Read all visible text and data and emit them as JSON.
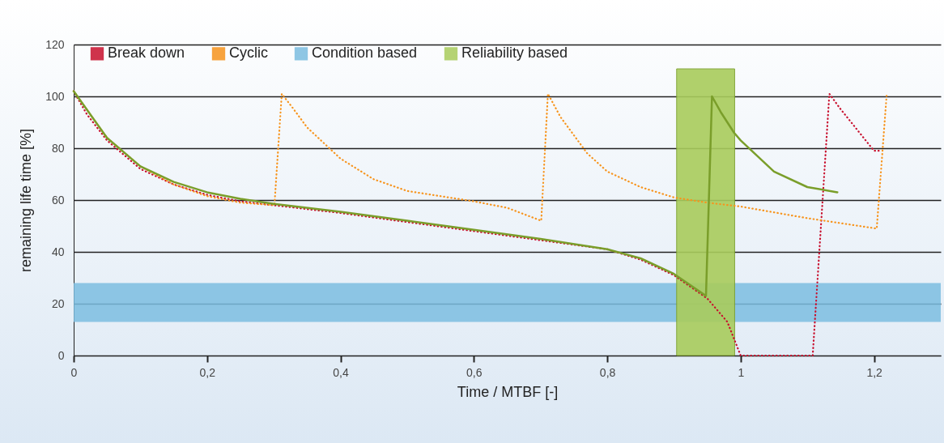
{
  "chart_data": {
    "type": "line",
    "xlabel": "Time / MTBF [-]",
    "ylabel": "remaining life time [%]",
    "xlim": [
      0,
      1.3
    ],
    "ylim": [
      0,
      120
    ],
    "xticks": [
      0,
      {
        "value": 0.2,
        "label": "0,2"
      },
      {
        "value": 0.4,
        "label": "0,4"
      },
      {
        "value": 0.6,
        "label": "0,6"
      },
      {
        "value": 0.8,
        "label": "0,8"
      },
      1,
      {
        "value": 1.2,
        "label": "1,2"
      }
    ],
    "yticks": [
      0,
      20,
      40,
      60,
      80,
      100,
      120
    ],
    "grid": "y",
    "legend": "top",
    "series": [
      {
        "name": "Break down",
        "color": "#c8102e",
        "line_style": "dotted",
        "x": [
          0,
          0.02,
          0.05,
          0.1,
          0.15,
          0.2,
          0.25,
          0.3,
          0.4,
          0.5,
          0.6,
          0.7,
          0.8,
          0.85,
          0.9,
          0.95,
          0.98,
          1.0,
          1.108,
          1.133,
          1.15,
          1.2,
          1.21
        ],
        "values": [
          102,
          93,
          83,
          72,
          66,
          62,
          59.5,
          58,
          55,
          51.5,
          48,
          44.5,
          41,
          37,
          31,
          22,
          13,
          0,
          0,
          101,
          95,
          79,
          79
        ]
      },
      {
        "name": "Cyclic",
        "color": "#f7941d",
        "line_style": "dotted",
        "x": [
          0,
          0.05,
          0.1,
          0.15,
          0.2,
          0.25,
          0.301,
          0.312,
          0.33,
          0.35,
          0.4,
          0.45,
          0.5,
          0.55,
          0.6,
          0.65,
          0.701,
          0.711,
          0.73,
          0.77,
          0.8,
          0.85,
          0.9,
          0.95,
          1.0,
          1.1,
          1.204,
          1.219
        ],
        "values": [
          102,
          84,
          73,
          66,
          61.5,
          59,
          58,
          101,
          95,
          88,
          76,
          68,
          63.5,
          61.5,
          59.5,
          57,
          52,
          101,
          92,
          78,
          71,
          65,
          61,
          59,
          57.5,
          53,
          49,
          101
        ]
      },
      {
        "color": "#7a9e2a",
        "line_style": "solid",
        "x": [
          0,
          0.05,
          0.1,
          0.15,
          0.2,
          0.25,
          0.3,
          0.4,
          0.5,
          0.6,
          0.7,
          0.8,
          0.85,
          0.9,
          0.948,
          0.957,
          0.97,
          0.99,
          1.0,
          1.05,
          1.1,
          1.145
        ],
        "values": [
          102,
          84,
          73,
          67,
          63,
          60.5,
          58.5,
          55.5,
          52,
          48.5,
          45,
          41,
          37.5,
          31.5,
          23,
          100,
          94,
          86,
          83,
          71,
          65,
          63
        ]
      }
    ],
    "bands": [
      {
        "axis": "y",
        "from": 13,
        "to": 28,
        "label": "Condition based",
        "color": "#7bbde0"
      },
      {
        "axis": "x",
        "from": 0.904,
        "to": 0.991,
        "label": "Reliability based",
        "color": "#a9cc5c"
      }
    ]
  }
}
